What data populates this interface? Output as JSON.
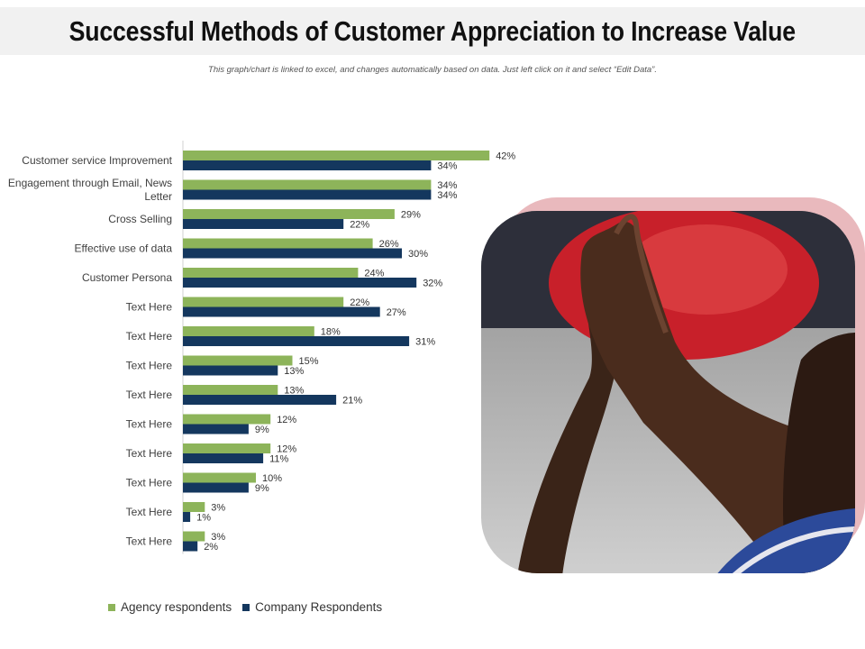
{
  "title": "Successful Methods of Customer Appreciation to Increase Value",
  "subtitle": "This graph/chart is linked to excel, and changes automatically based on data. Just left click on it and select “Edit Data”.",
  "colors": {
    "agency": "#8db45a",
    "company": "#14375e",
    "title_band": "#f1f1f1",
    "photo_frame": "#e9b9bd"
  },
  "photo": {
    "icon": "high-five-photo-icon"
  },
  "chart_data": {
    "type": "bar",
    "orientation": "horizontal",
    "categories": [
      "Customer service Improvement",
      "Engagement through Email, News Letter",
      "Cross Selling",
      "Effective use of data",
      "Customer Persona",
      "Text Here",
      "Text Here",
      "Text Here",
      "Text Here",
      "Text Here",
      "Text Here",
      "Text Here",
      "Text Here",
      "Text Here"
    ],
    "series": [
      {
        "name": "Agency respondents",
        "values": [
          42,
          34,
          29,
          26,
          24,
          22,
          18,
          15,
          13,
          12,
          12,
          10,
          3,
          3
        ]
      },
      {
        "name": "Company Respondents",
        "values": [
          34,
          34,
          22,
          30,
          32,
          27,
          31,
          13,
          21,
          9,
          11,
          9,
          1,
          2
        ]
      }
    ],
    "value_suffix": "%",
    "xlim": [
      0,
      50
    ],
    "legend": "bottom-left"
  }
}
